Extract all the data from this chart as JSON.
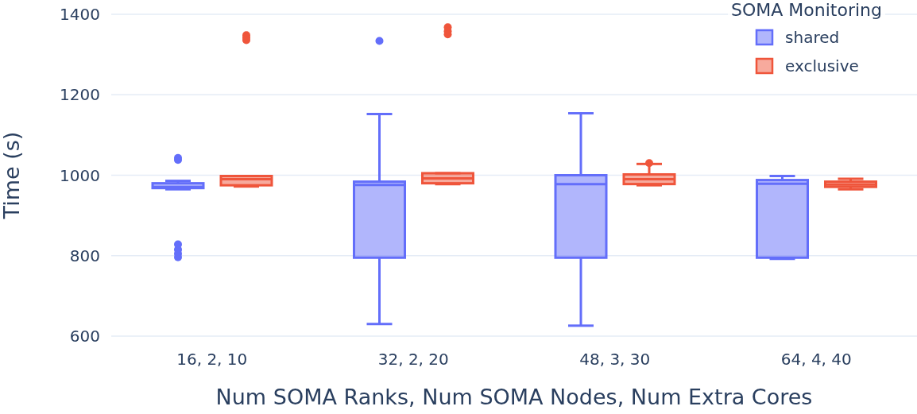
{
  "chart_data": {
    "type": "box",
    "xlabel": "Num SOMA Ranks, Num SOMA Nodes, Num Extra Cores",
    "ylabel": "Time (s)",
    "legend_title": "SOMA Monitoring",
    "categories": [
      "16, 2, 10",
      "32, 2, 20",
      "48, 3, 30",
      "64, 4, 40"
    ],
    "series": [
      {
        "name": "shared",
        "color": "#636efa",
        "boxes": [
          {
            "low": 965,
            "q1": 968,
            "median": 971,
            "q3": 980,
            "high": 986,
            "outliers": [
              1043,
              1038,
              828,
              815,
              805,
              796
            ]
          },
          {
            "low": 630,
            "q1": 795,
            "median": 976,
            "q3": 984,
            "high": 1152,
            "outliers": [
              1334
            ]
          },
          {
            "low": 626,
            "q1": 795,
            "median": 978,
            "q3": 1000,
            "high": 1154
          },
          {
            "low": 792,
            "q1": 795,
            "median": 979,
            "q3": 988,
            "high": 998
          }
        ]
      },
      {
        "name": "exclusive",
        "color": "#ef553b",
        "boxes": [
          {
            "low": 972,
            "q1": 975,
            "median": 990,
            "q3": 998,
            "high": 998,
            "outliers": [
              1348,
              1342,
              1336
            ]
          },
          {
            "low": 978,
            "q1": 980,
            "median": 992,
            "q3": 1005,
            "high": 1005,
            "outliers": [
              1368,
              1358,
              1350
            ]
          },
          {
            "low": 975,
            "q1": 978,
            "median": 990,
            "q3": 1002,
            "high": 1028,
            "outliers": [
              1030
            ]
          },
          {
            "low": 965,
            "q1": 971,
            "median": 977,
            "q3": 984,
            "high": 991
          }
        ]
      }
    ],
    "ylim": [
      600,
      1400
    ],
    "yticks": [
      600,
      800,
      1000,
      1200,
      1400
    ],
    "grid": "y",
    "legend": "top right"
  }
}
